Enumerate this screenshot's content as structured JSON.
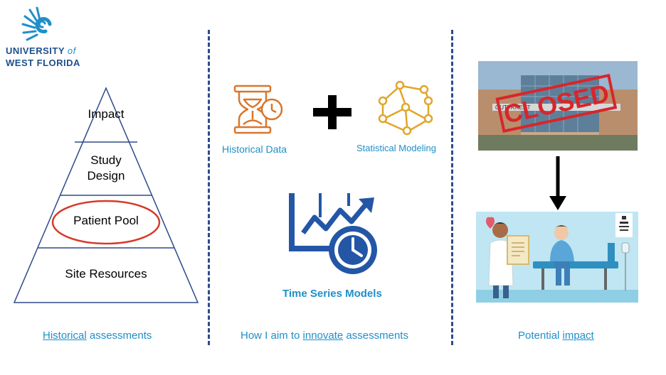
{
  "logo": {
    "line1_a": "UNIVERSITY",
    "line1_b": "of",
    "line2": "WEST FLORIDA"
  },
  "pyramid": {
    "levels": [
      "Impact",
      "Study Design",
      "Patient Pool",
      "Site Resources"
    ]
  },
  "middle": {
    "historical_data_label": "Historical Data",
    "statistical_modeling_label": "Statistical Modeling",
    "plus_symbol": "+",
    "time_series_label": "Time Series Models"
  },
  "right": {
    "closed_stamp": "CLOSED",
    "building_sign": "OUTPATIENT"
  },
  "captions": {
    "left_underlined": "Historical",
    "left_rest": " assessments",
    "middle_pre": "How I aim to ",
    "middle_underlined": "innovate",
    "middle_post": " assessments",
    "right_pre": "Potential ",
    "right_underlined": "impact"
  },
  "colors": {
    "logo_blue": "#1d4f8c",
    "accent_blue": "#1f8fc9",
    "icon_orange": "#d9762b",
    "icon_gold": "#e0a62a",
    "ts_blue": "#2456a6",
    "closed_red": "#d7262b",
    "highlight_red": "#d63a2a"
  }
}
